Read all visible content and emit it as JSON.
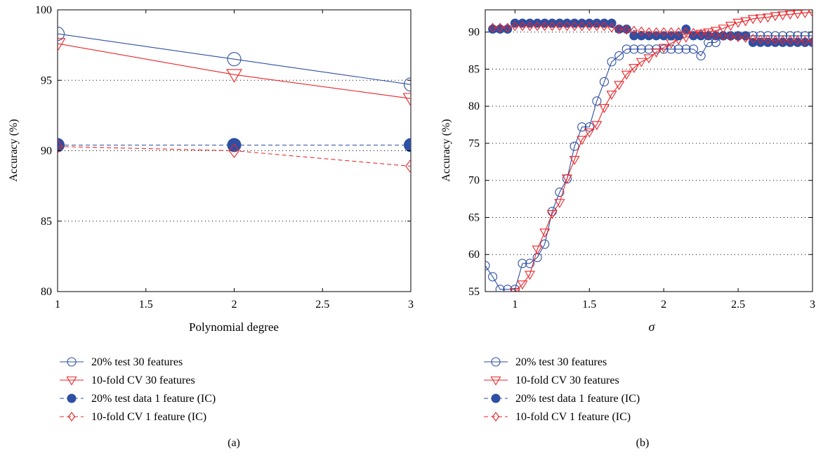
{
  "colors": {
    "blue": "#2e4fa3",
    "red": "#e8262a",
    "grid": "#000000"
  },
  "chart_data": [
    {
      "type": "line",
      "panel_label": "(a)",
      "xlabel": "Polynomial degree",
      "ylabel": "Accuracy (%)",
      "xlim": [
        1,
        3
      ],
      "ylim": [
        80,
        100
      ],
      "xticks": [
        1,
        1.5,
        2,
        2.5,
        3
      ],
      "yticks": [
        80,
        85,
        90,
        95,
        100
      ],
      "grid": "horizontal dotted",
      "legend_position": "below-plot",
      "series": [
        {
          "name": "20% test 30 features",
          "style": "solid",
          "marker": "circle-open",
          "color": "#2e4fa3",
          "x": [
            1,
            2,
            3
          ],
          "y": [
            98.3,
            96.5,
            94.7
          ]
        },
        {
          "name": "10-fold CV 30 features",
          "style": "solid",
          "marker": "triangle-down-open",
          "color": "#e8262a",
          "x": [
            1,
            2,
            3
          ],
          "y": [
            97.6,
            95.4,
            93.7
          ]
        },
        {
          "name": "20% test data 1 feature (IC)",
          "style": "dashed",
          "marker": "circle-filled",
          "color": "#2e4fa3",
          "x": [
            1,
            2,
            3
          ],
          "y": [
            90.4,
            90.4,
            90.4
          ]
        },
        {
          "name": "10-fold CV 1 feature (IC)",
          "style": "dashed",
          "marker": "diamond-open",
          "color": "#e8262a",
          "x": [
            1,
            2,
            3
          ],
          "y": [
            90.3,
            90.0,
            88.9
          ]
        }
      ]
    },
    {
      "type": "line",
      "panel_label": "(b)",
      "xlabel": "σ",
      "ylabel": "Accuracy (%)",
      "xlim": [
        0.8,
        3
      ],
      "ylim": [
        55,
        93
      ],
      "xticks": [
        1,
        1.5,
        2,
        2.5,
        3
      ],
      "yticks": [
        55,
        60,
        65,
        70,
        75,
        80,
        85,
        90
      ],
      "grid": "horizontal dotted",
      "legend_position": "below-plot",
      "series": [
        {
          "name": "20% test 30 features",
          "style": "solid",
          "marker": "circle-open",
          "color": "#2e4fa3",
          "x": [
            0.8,
            0.85,
            0.9,
            0.95,
            1.0,
            1.05,
            1.1,
            1.15,
            1.2,
            1.25,
            1.3,
            1.35,
            1.4,
            1.45,
            1.5,
            1.55,
            1.6,
            1.65,
            1.7,
            1.75,
            1.8,
            1.85,
            1.9,
            1.95,
            2.0,
            2.05,
            2.1,
            2.15,
            2.2,
            2.25,
            2.3,
            2.35,
            2.4,
            2.45,
            2.5,
            2.55,
            2.6,
            2.65,
            2.7,
            2.75,
            2.8,
            2.85,
            2.9,
            2.95,
            3.0
          ],
          "y": [
            58.5,
            57.0,
            55.3,
            55.3,
            55.3,
            58.8,
            58.8,
            59.6,
            61.4,
            65.8,
            68.4,
            70.2,
            74.6,
            77.2,
            77.2,
            80.7,
            83.3,
            86.0,
            86.8,
            87.7,
            87.7,
            87.7,
            87.7,
            87.7,
            87.7,
            87.7,
            87.7,
            87.7,
            87.7,
            86.8,
            88.6,
            88.6,
            89.5,
            89.5,
            89.5,
            89.5,
            89.5,
            89.5,
            89.5,
            89.5,
            89.5,
            89.5,
            89.5,
            89.5,
            89.5
          ]
        },
        {
          "name": "10-fold CV 30 features",
          "style": "solid",
          "marker": "triangle-down-open",
          "color": "#e8262a",
          "x": [
            1.0,
            1.05,
            1.1,
            1.15,
            1.2,
            1.25,
            1.3,
            1.35,
            1.4,
            1.45,
            1.5,
            1.55,
            1.6,
            1.65,
            1.7,
            1.75,
            1.8,
            1.85,
            1.9,
            1.95,
            2.0,
            2.05,
            2.1,
            2.15,
            2.2,
            2.25,
            2.3,
            2.35,
            2.4,
            2.45,
            2.5,
            2.55,
            2.6,
            2.65,
            2.7,
            2.75,
            2.8,
            2.85,
            2.9,
            2.95,
            3.0
          ],
          "y": [
            55.0,
            56.0,
            57.3,
            60.7,
            63.0,
            65.5,
            67.0,
            70.3,
            72.8,
            75.5,
            76.5,
            77.5,
            79.8,
            81.6,
            82.9,
            84.3,
            85.2,
            86.0,
            86.5,
            87.3,
            87.9,
            88.5,
            89.0,
            89.3,
            89.6,
            89.8,
            90.0,
            90.2,
            90.5,
            90.9,
            91.3,
            91.5,
            91.8,
            91.9,
            92.0,
            92.2,
            92.3,
            92.4,
            92.5,
            92.6,
            92.7
          ]
        },
        {
          "name": "20% test data 1 feature (IC)",
          "style": "dashed",
          "marker": "circle-filled",
          "color": "#2e4fa3",
          "x": [
            0.85,
            0.9,
            0.95,
            1.0,
            1.05,
            1.1,
            1.15,
            1.2,
            1.25,
            1.3,
            1.35,
            1.4,
            1.45,
            1.5,
            1.55,
            1.6,
            1.65,
            1.7,
            1.75,
            1.8,
            1.85,
            1.9,
            1.95,
            2.0,
            2.05,
            2.1,
            2.15,
            2.2,
            2.25,
            2.3,
            2.35,
            2.4,
            2.45,
            2.5,
            2.55,
            2.6,
            2.65,
            2.7,
            2.75,
            2.8,
            2.85,
            2.9,
            2.95,
            3.0
          ],
          "y": [
            90.4,
            90.4,
            90.4,
            91.2,
            91.2,
            91.2,
            91.2,
            91.2,
            91.2,
            91.2,
            91.2,
            91.2,
            91.2,
            91.2,
            91.2,
            91.2,
            91.2,
            90.4,
            90.4,
            89.5,
            89.5,
            89.5,
            89.5,
            89.5,
            89.5,
            89.5,
            90.4,
            89.5,
            89.5,
            89.5,
            89.5,
            89.5,
            89.5,
            89.5,
            89.5,
            88.6,
            88.6,
            88.6,
            88.6,
            88.6,
            88.6,
            88.6,
            88.6,
            88.6
          ]
        },
        {
          "name": "10-fold CV 1 feature (IC)",
          "style": "dashed",
          "marker": "diamond-open",
          "color": "#e8262a",
          "x": [
            0.85,
            0.9,
            0.95,
            1.0,
            1.05,
            1.1,
            1.15,
            1.2,
            1.25,
            1.3,
            1.35,
            1.4,
            1.45,
            1.5,
            1.55,
            1.6,
            1.65,
            1.7,
            1.75,
            1.8,
            1.85,
            1.9,
            1.95,
            2.0,
            2.05,
            2.1,
            2.15,
            2.2,
            2.25,
            2.3,
            2.35,
            2.4,
            2.45,
            2.5,
            2.55,
            2.6,
            2.65,
            2.7,
            2.75,
            2.8,
            2.85,
            2.9,
            2.95,
            3.0
          ],
          "y": [
            90.6,
            90.6,
            90.6,
            90.8,
            90.8,
            90.8,
            90.8,
            90.8,
            90.8,
            90.8,
            90.8,
            90.8,
            90.8,
            90.8,
            90.8,
            90.8,
            90.6,
            90.4,
            90.3,
            90.2,
            90.1,
            90.0,
            90.0,
            90.0,
            90.0,
            90.0,
            90.0,
            89.9,
            89.8,
            89.7,
            89.6,
            89.5,
            89.4,
            89.3,
            89.2,
            89.1,
            89.0,
            89.0,
            88.9,
            88.9,
            88.9,
            88.9,
            88.8,
            88.8
          ]
        }
      ]
    }
  ]
}
